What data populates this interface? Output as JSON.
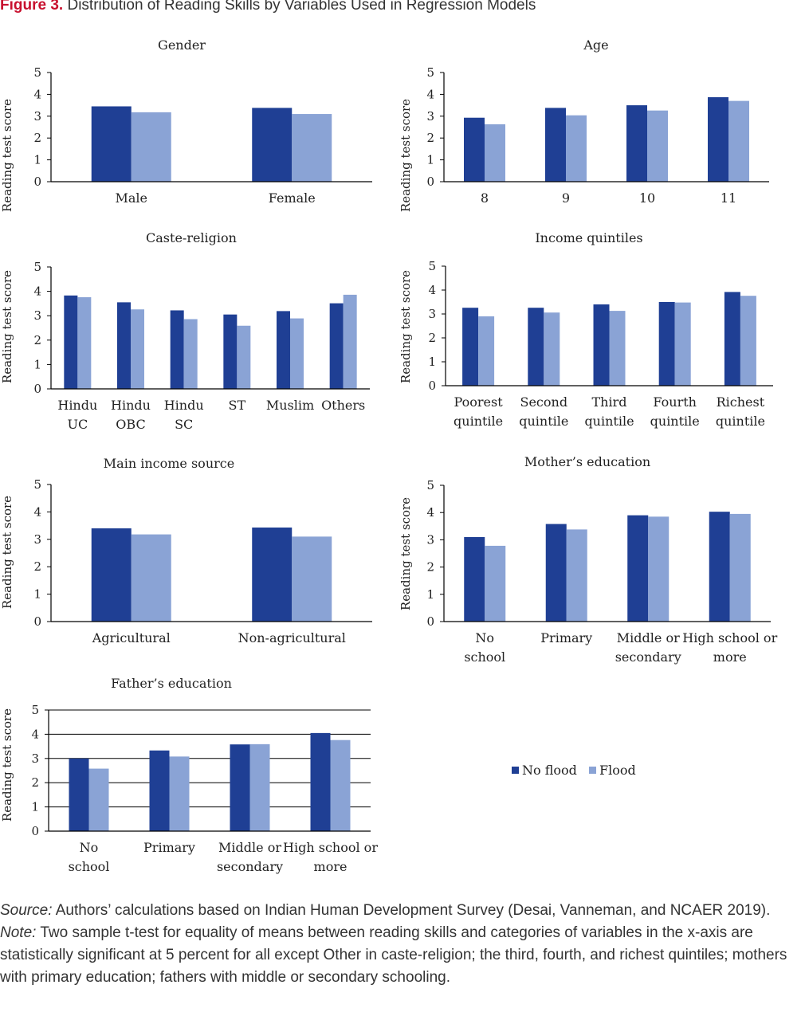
{
  "figure": {
    "label": "Figure 3.",
    "title": "Distribution of Reading Skills by Variables Used in Regression Models"
  },
  "colors": {
    "no_flood": "#1f3f94",
    "flood": "#8aa3d5"
  },
  "legend": {
    "no_flood": "No flood",
    "flood": "Flood"
  },
  "chart_data": [
    {
      "type": "bar",
      "title": "Gender",
      "ylabel": "Reading test score",
      "ylim": [
        0,
        5
      ],
      "grid": false,
      "categories": [
        "Male",
        "Female"
      ],
      "series": [
        {
          "name": "No flood",
          "values": [
            3.45,
            3.38
          ]
        },
        {
          "name": "Flood",
          "values": [
            3.18,
            3.1
          ]
        }
      ]
    },
    {
      "type": "bar",
      "title": "Age",
      "ylabel": "Reading test score",
      "ylim": [
        0,
        5
      ],
      "grid": false,
      "categories": [
        "8",
        "9",
        "10",
        "11"
      ],
      "series": [
        {
          "name": "No flood",
          "values": [
            2.93,
            3.38,
            3.5,
            3.87
          ]
        },
        {
          "name": "Flood",
          "values": [
            2.63,
            3.04,
            3.26,
            3.7
          ]
        }
      ]
    },
    {
      "type": "bar",
      "title": "Caste-religion",
      "ylabel": "Reading test score",
      "ylim": [
        0,
        5
      ],
      "grid": false,
      "categories": [
        "Hindu UC",
        "Hindu OBC",
        "Hindu SC",
        "ST",
        "Muslim",
        "Others"
      ],
      "series": [
        {
          "name": "No flood",
          "values": [
            3.83,
            3.55,
            3.22,
            3.05,
            3.19,
            3.51
          ]
        },
        {
          "name": "Flood",
          "values": [
            3.76,
            3.26,
            2.86,
            2.59,
            2.89,
            3.86
          ]
        }
      ]
    },
    {
      "type": "bar",
      "title": "Income quintiles",
      "ylabel": "Reading test score",
      "ylim": [
        0,
        5
      ],
      "grid": false,
      "categories": [
        "Poorest quintile",
        "Second quintile",
        "Third quintile",
        "Fourth quintile",
        "Richest quintile"
      ],
      "series": [
        {
          "name": "No flood",
          "values": [
            3.26,
            3.26,
            3.4,
            3.5,
            3.92
          ]
        },
        {
          "name": "Flood",
          "values": [
            2.9,
            3.06,
            3.13,
            3.48,
            3.76
          ]
        }
      ]
    },
    {
      "type": "bar",
      "title": "Main income source",
      "ylabel": "Reading test score",
      "ylim": [
        0,
        5
      ],
      "grid": false,
      "categories": [
        "Agricultural",
        "Non-agricultural"
      ],
      "series": [
        {
          "name": "No flood",
          "values": [
            3.4,
            3.43
          ]
        },
        {
          "name": "Flood",
          "values": [
            3.18,
            3.1
          ]
        }
      ]
    },
    {
      "type": "bar",
      "title": "Mother’s education",
      "ylabel": "Reading test score",
      "ylim": [
        0,
        5
      ],
      "grid": false,
      "categories": [
        "No school",
        "Primary",
        "Middle or secondary",
        "High school or more"
      ],
      "series": [
        {
          "name": "No flood",
          "values": [
            3.1,
            3.58,
            3.9,
            4.03
          ]
        },
        {
          "name": "Flood",
          "values": [
            2.78,
            3.38,
            3.85,
            3.95
          ]
        }
      ]
    },
    {
      "type": "bar",
      "title": "Father’s education",
      "ylabel": "Reading test score",
      "ylim": [
        0,
        5
      ],
      "grid": true,
      "categories": [
        "No school",
        "Primary",
        "Middle or secondary",
        "High school or more"
      ],
      "series": [
        {
          "name": "No flood",
          "values": [
            3.0,
            3.33,
            3.58,
            4.05
          ]
        },
        {
          "name": "Flood",
          "values": [
            2.58,
            3.08,
            3.59,
            3.76
          ]
        }
      ]
    }
  ],
  "footer": {
    "source_label": "Source:",
    "source_text": " Authors’ calculations based on Indian Human Development Survey (Desai, Vanneman, and NCAER 2019).",
    "note_label": "Note:",
    "note_text": " Two sample t-test for equality of means between reading skills and categories of variables in the x-axis are statistically significant at 5 percent for all except Other in caste-religion; the third, fourth, and richest quintiles; mothers with primary education; fathers with middle or secondary schooling."
  }
}
